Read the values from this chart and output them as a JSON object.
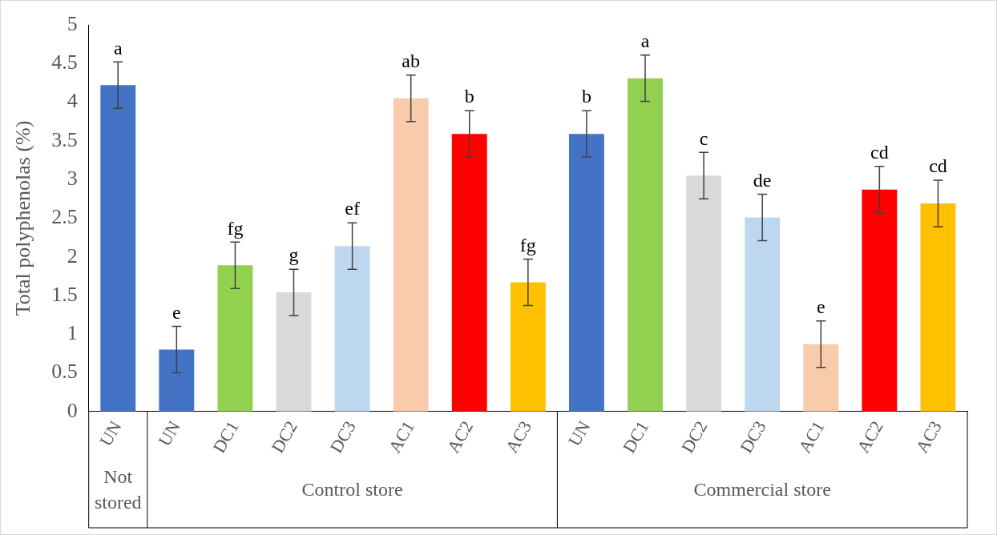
{
  "chart_data": {
    "type": "bar",
    "ylabel": "Total polyphenolas (%)",
    "categories": [
      "UN",
      "UN",
      "DC1",
      "DC2",
      "DC3",
      "AC1",
      "AC2",
      "AC3",
      "UN",
      "DC1",
      "DC2",
      "DC3",
      "AC1",
      "AC2",
      "AC3"
    ],
    "values": [
      4.22,
      0.8,
      1.89,
      1.54,
      2.14,
      4.05,
      3.59,
      1.67,
      3.59,
      4.31,
      3.05,
      2.51,
      0.87,
      2.87,
      2.69
    ],
    "errors": [
      0.3,
      0.3,
      0.3,
      0.3,
      0.3,
      0.3,
      0.3,
      0.3,
      0.3,
      0.3,
      0.3,
      0.3,
      0.3,
      0.3,
      0.3
    ],
    "value_labels": [
      "a",
      "e",
      "fg",
      "g",
      "ef",
      "ab",
      "b",
      "fg",
      "b",
      "a",
      "c",
      "de",
      "e",
      "cd",
      "cd"
    ],
    "colors": [
      "#4472c4",
      "#4472c4",
      "#92d050",
      "#d9d9d9",
      "#bdd7ee",
      "#f8cbad",
      "#ff0000",
      "#ffc000",
      "#4472c4",
      "#92d050",
      "#d9d9d9",
      "#bdd7ee",
      "#f8cbad",
      "#ff0000",
      "#ffc000"
    ],
    "ylim": [
      0,
      5
    ],
    "yticks": [
      0,
      0.5,
      1,
      1.5,
      2,
      2.5,
      3,
      3.5,
      4,
      4.5,
      5
    ],
    "grid": false,
    "legend": false,
    "annotations": [
      "Not\nstored",
      "Control store",
      "Commercial store"
    ]
  }
}
